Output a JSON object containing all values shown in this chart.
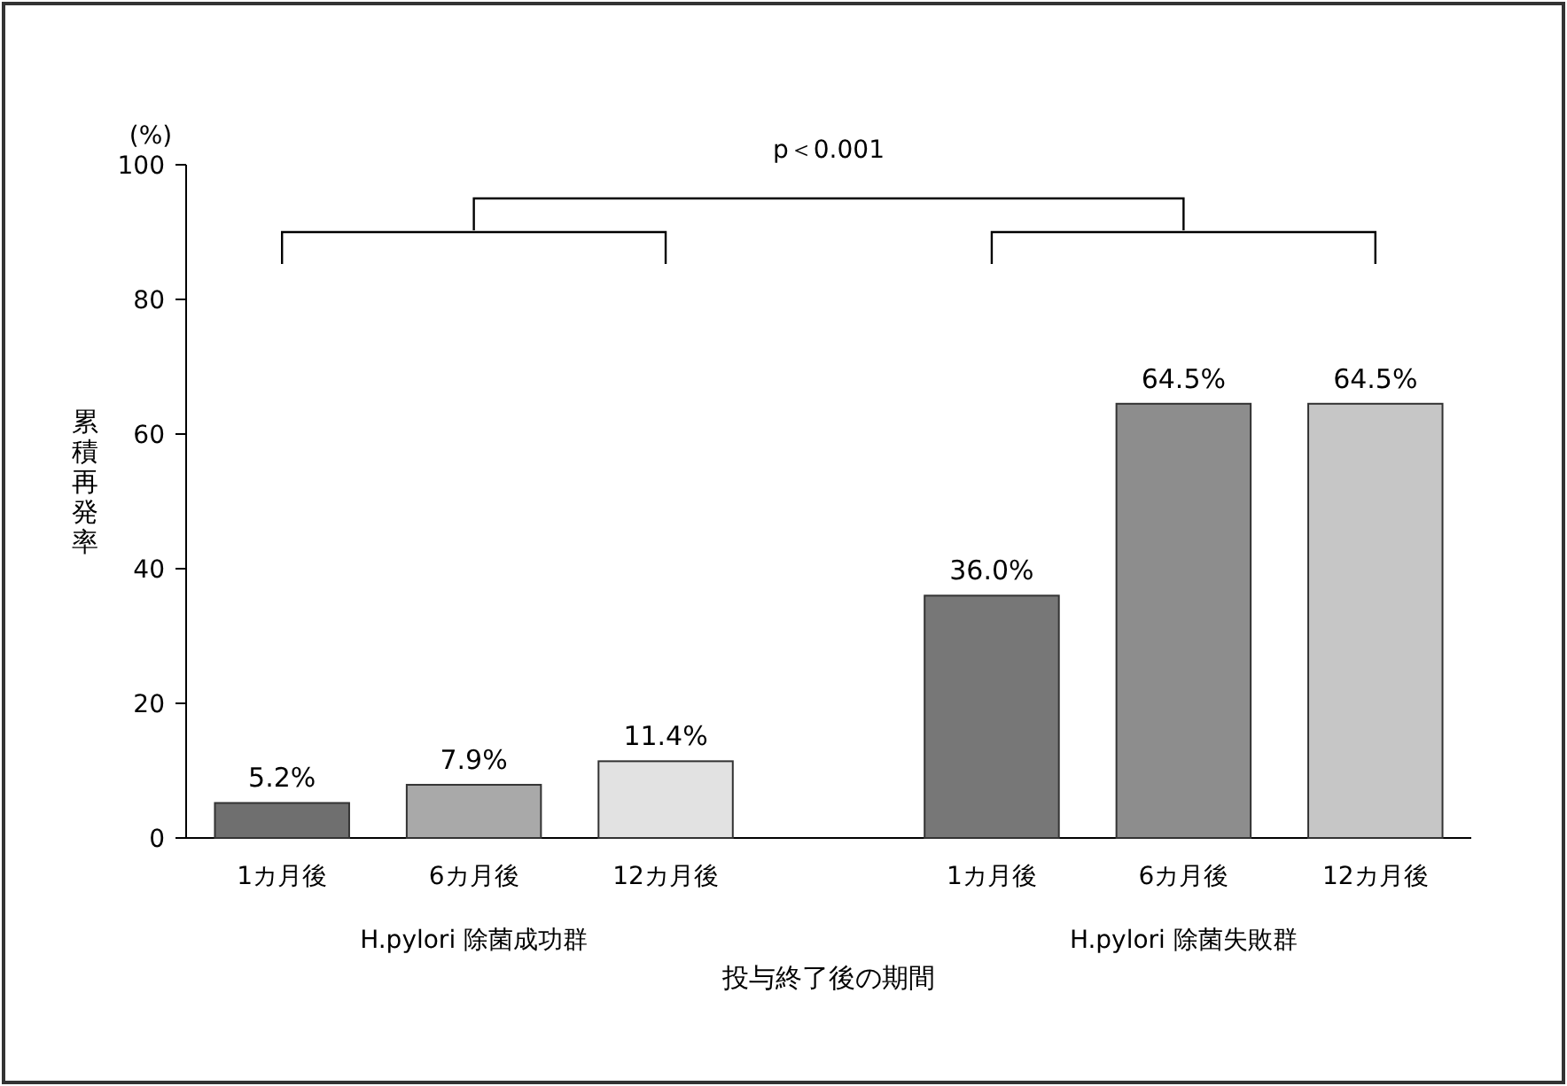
{
  "chart_data": {
    "type": "bar",
    "categories": [
      "1カ月後",
      "6カ月後",
      "12カ月後",
      "1カ月後",
      "6カ月後",
      "12カ月後"
    ],
    "values": [
      5.2,
      7.9,
      11.4,
      36.0,
      64.5,
      64.5
    ],
    "colors": [
      "#6f6f6f",
      "#a9a9a9",
      "#e2e2e2",
      "#777777",
      "#8d8d8d",
      "#c6c6c6"
    ],
    "value_labels": [
      "5.2%",
      "7.9%",
      "11.4%",
      "36.0%",
      "64.5%",
      "64.5%"
    ],
    "ylabel": "累積再発率",
    "xlabel": "投与終了後の期間",
    "annotations": [
      "(%)",
      "p＜0.001",
      "H.pylori 除菌成功群",
      "H.pylori 除菌失敗群"
    ],
    "ylim": [
      0,
      100
    ],
    "yticks": [
      0,
      20,
      40,
      60,
      80,
      100
    ],
    "grid": false,
    "legend": false
  }
}
